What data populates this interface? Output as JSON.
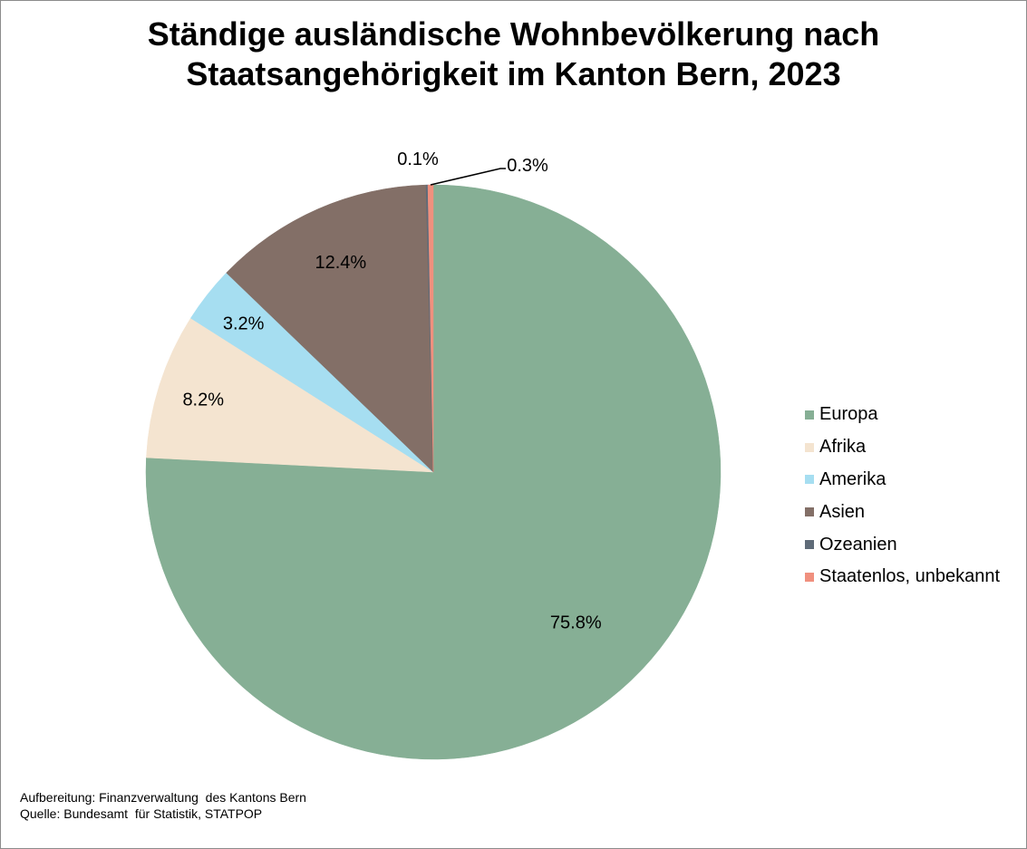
{
  "chart_data": {
    "type": "pie",
    "title": "Ständige ausländische Wohnbevölkerung nach Staatsangehörigkeit im Kanton Bern, 2023",
    "title_lines": [
      "Ständige ausländische Wohnbevölkerung nach",
      "Staatsangehörigkeit im Kanton Bern, 2023"
    ],
    "unit": "%",
    "legend_position": "right",
    "slices": [
      {
        "label": "Europa",
        "value": 75.8,
        "display": "75.8%",
        "color": "#86af95"
      },
      {
        "label": "Afrika",
        "value": 8.2,
        "display": "8.2%",
        "color": "#f4e4d0"
      },
      {
        "label": "Amerika",
        "value": 3.2,
        "display": "3.2%",
        "color": "#a6def1"
      },
      {
        "label": "Asien",
        "value": 12.4,
        "display": "12.4%",
        "color": "#836f67"
      },
      {
        "label": "Ozeanien",
        "value": 0.1,
        "display": "0.1%",
        "color": "#5f6b78"
      },
      {
        "label": "Staatenlos, unbekannt",
        "value": 0.3,
        "display": "0.3%",
        "color": "#f0907e"
      }
    ]
  },
  "footer": {
    "line1": "Aufbereitung: Finanzverwaltung  des Kantons Bern",
    "line2": "Quelle: Bundesamt  für Statistik, STATPOP"
  }
}
